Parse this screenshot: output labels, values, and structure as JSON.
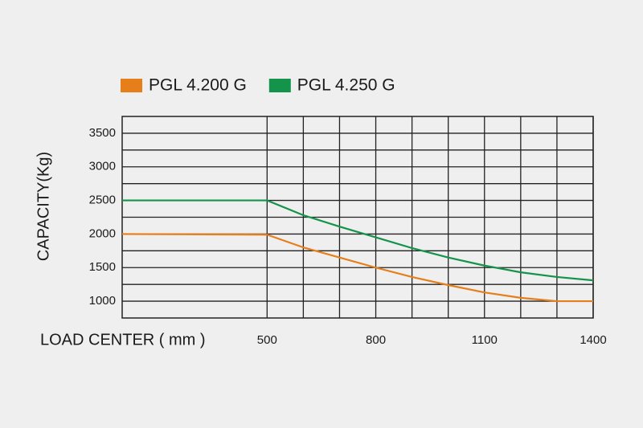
{
  "chart_data": {
    "type": "line",
    "x_label": "LOAD CENTER ( mm )",
    "y_label": "CAPACITY(Kg)",
    "x": [
      100,
      500,
      600,
      700,
      800,
      900,
      1000,
      1100,
      1200,
      1300,
      1400
    ],
    "series": [
      {
        "name": "PGL 4.200 G",
        "color": "#e67e1a",
        "values": [
          2000,
          1990,
          1800,
          1650,
          1500,
          1360,
          1240,
          1130,
          1050,
          1000,
          1000
        ]
      },
      {
        "name": "PGL 4.250 G",
        "color": "#14934a",
        "values": [
          2500,
          2500,
          2280,
          2110,
          1950,
          1790,
          1650,
          1530,
          1430,
          1360,
          1310
        ]
      }
    ],
    "xlim": [
      100,
      1400
    ],
    "xticks": [
      500,
      800,
      1100,
      1400
    ],
    "x_grid": [
      500,
      600,
      700,
      800,
      900,
      1000,
      1100,
      1200,
      1300,
      1400
    ],
    "ylim": [
      750,
      3750
    ],
    "yticks": [
      1000,
      1500,
      2000,
      2500,
      3000,
      3500
    ],
    "y_grid": [
      1000,
      1250,
      1500,
      1750,
      2000,
      2250,
      2500,
      2750,
      3000,
      3250,
      3500
    ],
    "legend": "top"
  }
}
